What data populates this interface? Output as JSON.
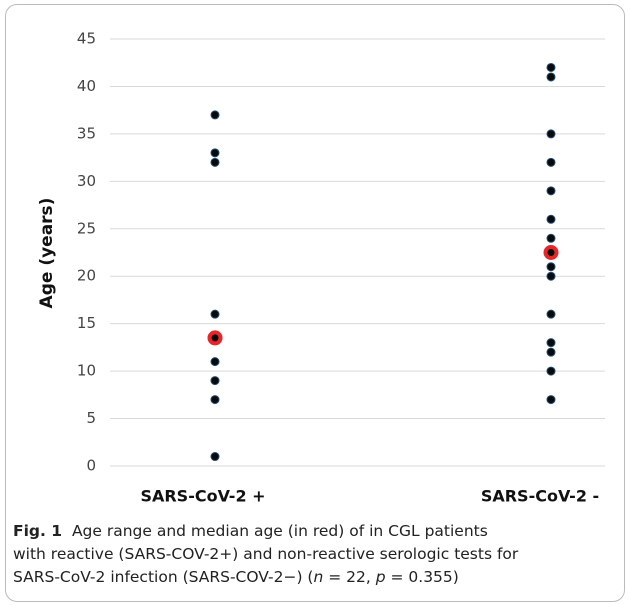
{
  "chart_data": {
    "type": "strip",
    "y_label": "Age (years)",
    "categories": [
      "SARS-CoV-2 +",
      "SARS-CoV-2 -"
    ],
    "points": [
      [
        37,
        33,
        32,
        16,
        11,
        9,
        7,
        1
      ],
      [
        42,
        41,
        35,
        32,
        29,
        26,
        24,
        21,
        20,
        16,
        13,
        12,
        10,
        7
      ]
    ],
    "medians": [
      13.5,
      22.5
    ],
    "point_color": "#0a0a0a",
    "median_color": "#e8262a",
    "ylim": [
      0,
      45
    ],
    "yticks": [
      0,
      5,
      10,
      15,
      20,
      25,
      30,
      35,
      40,
      45
    ],
    "grid": true
  },
  "caption": {
    "label": "Fig. 1",
    "lines": [
      "Age range and median age (in red) of in CGL patients",
      "with reactive (SARS-COV-2+) and non-reactive serologic tests for"
    ],
    "last": [
      "SARS-CoV-2 infection (SARS-COV-2−) (",
      "n",
      " = 22, ",
      "p",
      " = 0.355)"
    ]
  }
}
